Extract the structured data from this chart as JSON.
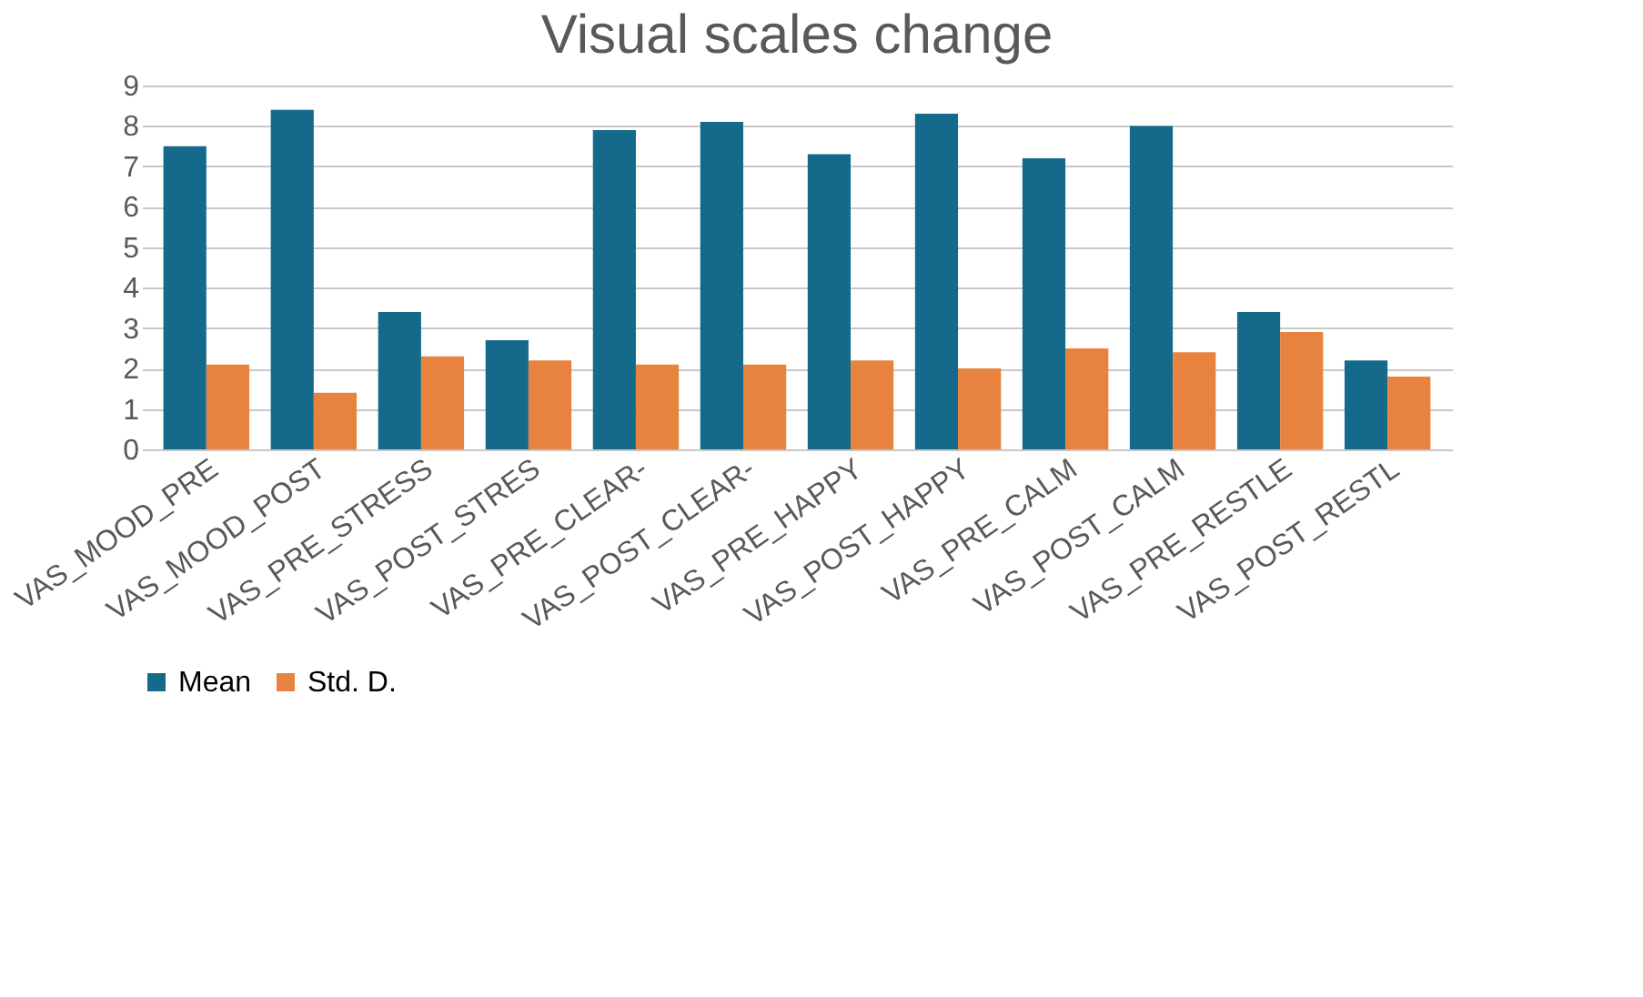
{
  "chart_data": {
    "type": "bar",
    "title": "Visual scales change",
    "categories": [
      "VAS_MOOD_PRE",
      "VAS_MOOD_POST",
      "VAS_PRE_STRESS",
      "VAS_POST_STRES",
      "VAS_PRE_CLEAR-",
      "VAS_POST_CLEAR-",
      "VAS_PRE_HAPPY",
      "VAS_POST_HAPPY",
      "VAS_PRE_CALM",
      "VAS_POST_CALM",
      "VAS_PRE_RESTLE",
      "VAS_POST_RESTL"
    ],
    "series": [
      {
        "name": "Mean",
        "color": "#156a8c",
        "values": [
          7.5,
          8.4,
          3.4,
          2.7,
          7.9,
          8.1,
          7.3,
          8.3,
          7.2,
          8.0,
          3.4,
          2.2
        ]
      },
      {
        "name": "Std. D.",
        "color": "#e8833f",
        "values": [
          2.1,
          1.4,
          2.3,
          2.2,
          2.1,
          2.1,
          2.2,
          2.0,
          2.5,
          2.4,
          2.9,
          1.8
        ]
      }
    ],
    "ylim": [
      0,
      9
    ],
    "yticks": [
      0,
      1,
      2,
      3,
      4,
      5,
      6,
      7,
      8,
      9
    ],
    "grid": "y",
    "legend": "bottom"
  }
}
